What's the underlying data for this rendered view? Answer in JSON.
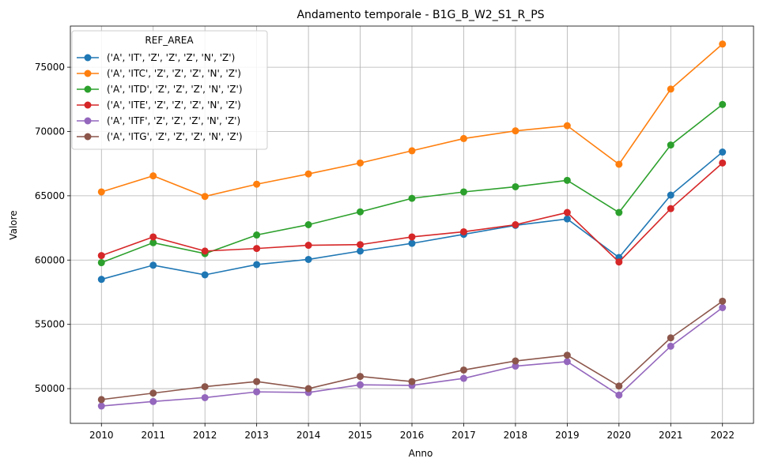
{
  "chart_data": {
    "type": "line",
    "title": "Andamento temporale - B1G_B_W2_S1_R_PS",
    "xlabel": "Anno",
    "ylabel": "Valore",
    "x": [
      2010,
      2011,
      2012,
      2013,
      2014,
      2015,
      2016,
      2017,
      2018,
      2019,
      2020,
      2021,
      2022
    ],
    "xlim": [
      2009.4,
      2022.6
    ],
    "ylim": [
      47300,
      78200
    ],
    "yticks": [
      50000,
      55000,
      60000,
      65000,
      70000,
      75000
    ],
    "grid": true,
    "legend": {
      "title": "REF_AREA",
      "placement": "top-left"
    },
    "series": [
      {
        "name": "('A', 'IT', 'Z', 'Z', 'Z', 'N', 'Z')",
        "color": "#1f77b4",
        "values": [
          58500,
          59600,
          58850,
          59650,
          60050,
          60700,
          61300,
          62000,
          62700,
          63200,
          60200,
          65050,
          68400
        ]
      },
      {
        "name": "('A', 'ITC', 'Z', 'Z', 'Z', 'N', 'Z')",
        "color": "#ff7f0e",
        "values": [
          65300,
          66550,
          64950,
          65900,
          66700,
          67550,
          68500,
          69450,
          70050,
          70450,
          67450,
          73300,
          76800
        ]
      },
      {
        "name": "('A', 'ITD', 'Z', 'Z', 'Z', 'N', 'Z')",
        "color": "#2ca02c",
        "values": [
          59800,
          61350,
          60500,
          61950,
          62750,
          63750,
          64800,
          65300,
          65700,
          66200,
          63700,
          68950,
          72100
        ]
      },
      {
        "name": "('A', 'ITE', 'Z', 'Z', 'Z', 'N', 'Z')",
        "color": "#d62728",
        "values": [
          60350,
          61800,
          60700,
          60900,
          61150,
          61200,
          61800,
          62200,
          62750,
          63700,
          59850,
          64000,
          67550
        ]
      },
      {
        "name": "('A', 'ITF', 'Z', 'Z', 'Z', 'N', 'Z')",
        "color": "#9467bd",
        "values": [
          48650,
          49000,
          49300,
          49750,
          49700,
          50300,
          50250,
          50800,
          51750,
          52100,
          49500,
          53300,
          56300
        ]
      },
      {
        "name": "('A', 'ITG', 'Z', 'Z', 'Z', 'N', 'Z')",
        "color": "#8c564b",
        "values": [
          49150,
          49650,
          50150,
          50550,
          50000,
          50950,
          50550,
          51450,
          52150,
          52600,
          50200,
          53950,
          56800
        ]
      }
    ]
  }
}
